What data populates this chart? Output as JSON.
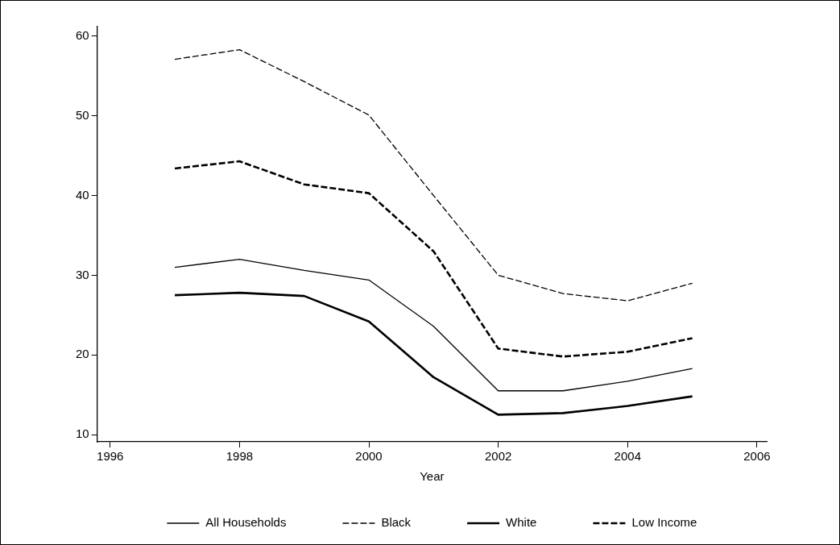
{
  "chart_data": {
    "type": "line",
    "xlabel": "Year",
    "x": [
      1997,
      1998,
      1999,
      2000,
      2001,
      2002,
      2003,
      2004,
      2005
    ],
    "xlim": [
      1995.8,
      2006.15
    ],
    "xticks": [
      1996,
      1998,
      2000,
      2002,
      2004,
      2006
    ],
    "ylim": [
      9.1,
      61.2
    ],
    "yticks": [
      10,
      20,
      30,
      40,
      50,
      60
    ],
    "grid": false,
    "legend": "bottom",
    "marker": "none",
    "series": [
      {
        "name": "All Households",
        "color": "#000000",
        "line_style": "solid",
        "values": [
          31,
          32,
          30.6,
          29.4,
          23.6,
          15.5,
          15.5,
          16.7,
          18.3
        ]
      },
      {
        "name": "Black",
        "color": "#000000",
        "line_style": "dashed",
        "values": [
          57.1,
          58.3,
          54.3,
          50.1,
          40,
          30,
          27.7,
          26.8,
          29
        ]
      },
      {
        "name": "White",
        "color": "#000000",
        "line_style": "solid",
        "values": [
          27.5,
          27.8,
          27.4,
          24.2,
          17.2,
          12.5,
          12.7,
          13.6,
          14.8
        ]
      },
      {
        "name": "Low Income",
        "color": "#000000",
        "line_style": "dashed",
        "values": [
          43.4,
          44.3,
          41.4,
          40.3,
          33,
          20.8,
          19.8,
          20.4,
          22.1
        ]
      }
    ]
  }
}
